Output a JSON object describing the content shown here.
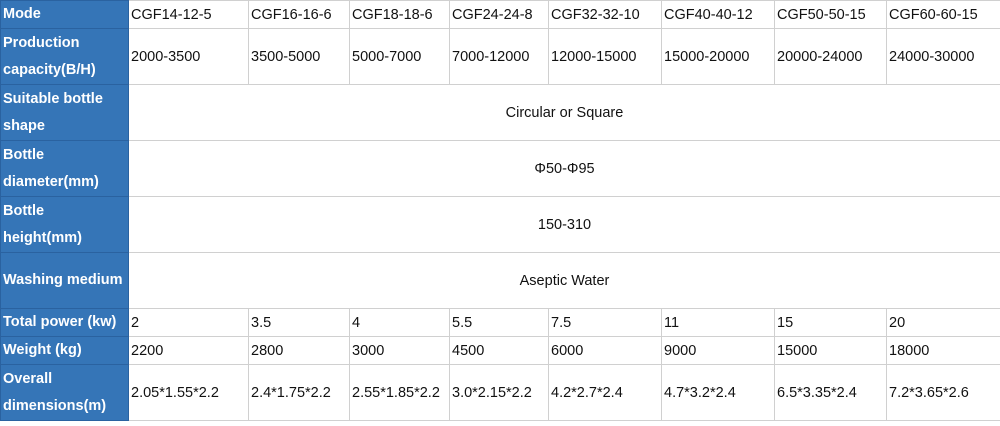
{
  "table": {
    "rows": [
      {
        "label": "Mode",
        "values": [
          "CGF14-12-5",
          "CGF16-16-6",
          "CGF18-18-6",
          "CGF24-24-8",
          "CGF32-32-10",
          "CGF40-40-12",
          "CGF50-50-15",
          "CGF60-60-15"
        ]
      },
      {
        "label": "Production capacity(B/H)",
        "values": [
          "2000-3500",
          "3500-5000",
          "5000-7000",
          "7000-12000",
          "12000-15000",
          "15000-20000",
          "20000-24000",
          "24000-30000"
        ]
      },
      {
        "label": "Suitable bottle shape",
        "merged": "Circular or Square"
      },
      {
        "label": "Bottle diameter(mm)",
        "merged": "Φ50-Φ95"
      },
      {
        "label": "Bottle height(mm)",
        "merged": "150-310"
      },
      {
        "label": "Washing medium",
        "merged": "Aseptic Water"
      },
      {
        "label": "Total power (kw)",
        "values": [
          "2",
          "3.5",
          "4",
          "5.5",
          "7.5",
          "11",
          "15",
          "20"
        ]
      },
      {
        "label": "Weight (kg)",
        "values": [
          "2200",
          "2800",
          "3000",
          "4500",
          "6000",
          "9000",
          "15000",
          "18000"
        ]
      },
      {
        "label": "Overall dimensions(m)",
        "values": [
          "2.05*1.55*2.2",
          "2.4*1.75*2.2",
          "2.55*1.85*2.2",
          "3.0*2.15*2.2",
          "4.2*2.7*2.4",
          "4.7*3.2*2.4",
          "6.5*3.35*2.4",
          "7.2*3.65*2.6"
        ]
      }
    ]
  }
}
